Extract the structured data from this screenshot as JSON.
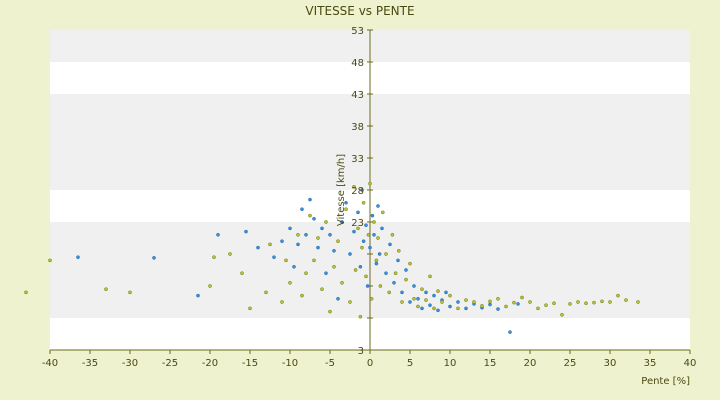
{
  "chart_data": {
    "type": "scatter",
    "title": "VITESSE vs PENTE",
    "xlabel": "Pente [%]",
    "ylabel": "Vitesse [km/h]",
    "xlim": [
      -40,
      40
    ],
    "ylim": [
      3,
      53
    ],
    "x_ticks": [
      -40,
      -35,
      -30,
      -25,
      -20,
      -15,
      -10,
      -5,
      0,
      5,
      10,
      15,
      20,
      25,
      30,
      35,
      40
    ],
    "y_ticks": [
      3,
      8,
      13,
      18,
      23,
      28,
      33,
      38,
      43,
      48,
      53
    ],
    "y_tick_labels": [
      "3",
      "",
      "",
      "",
      "23",
      "28",
      "33",
      "38",
      "43",
      "48",
      "53"
    ],
    "grid": "horizontal alternating bands",
    "legend": "none",
    "colors": {
      "background": "#eef2cf",
      "plot_area": "#ffffff",
      "band": "#f0f0f0",
      "axis": "#6b6b20",
      "series_a": "#3a8fd9",
      "series_b": "#b7c22e"
    },
    "series": [
      {
        "color": "#3a8fd9",
        "points": [
          [
            -36.5,
            17.5
          ],
          [
            -27,
            17.4
          ],
          [
            -21.5,
            11.5
          ],
          [
            -19,
            21
          ],
          [
            -15.5,
            21.5
          ],
          [
            -14,
            19
          ],
          [
            -12,
            17.5
          ],
          [
            -11,
            20
          ],
          [
            -10,
            22
          ],
          [
            -9.5,
            16
          ],
          [
            -9,
            19.5
          ],
          [
            -8.5,
            25
          ],
          [
            -8,
            21
          ],
          [
            -7.5,
            26.5
          ],
          [
            -7,
            23.5
          ],
          [
            -6.5,
            19
          ],
          [
            -6,
            22
          ],
          [
            -5.5,
            15
          ],
          [
            -5,
            21
          ],
          [
            -4.5,
            18.5
          ],
          [
            -4,
            11
          ],
          [
            -3.5,
            23
          ],
          [
            -3,
            26
          ],
          [
            -2.5,
            18
          ],
          [
            -2,
            21.5
          ],
          [
            -1.5,
            24.5
          ],
          [
            -1.2,
            16
          ],
          [
            -1,
            28
          ],
          [
            -0.8,
            20
          ],
          [
            -0.5,
            22.5
          ],
          [
            -0.3,
            13
          ],
          [
            0,
            19
          ],
          [
            0.3,
            24
          ],
          [
            0.5,
            21
          ],
          [
            0.8,
            16.5
          ],
          [
            1,
            25.5
          ],
          [
            1.2,
            18
          ],
          [
            1.5,
            22
          ],
          [
            2,
            15
          ],
          [
            2.5,
            19.5
          ],
          [
            3,
            13.5
          ],
          [
            3.5,
            17
          ],
          [
            4,
            12
          ],
          [
            4.5,
            15.5
          ],
          [
            5,
            10.5
          ],
          [
            5.5,
            13
          ],
          [
            6,
            11
          ],
          [
            6.5,
            9.5
          ],
          [
            7,
            12
          ],
          [
            7.5,
            10
          ],
          [
            8,
            11.5
          ],
          [
            8.5,
            9.2
          ],
          [
            9,
            10.8
          ],
          [
            9.5,
            12
          ],
          [
            10,
            9.8
          ],
          [
            11,
            10.5
          ],
          [
            12,
            9.5
          ],
          [
            13,
            10.2
          ],
          [
            14,
            9.6
          ],
          [
            15,
            10.1
          ],
          [
            16,
            9.4
          ],
          [
            17.5,
            5.8
          ],
          [
            18.5,
            10.2
          ]
        ]
      },
      {
        "color": "#b7c22e",
        "points": [
          [
            -43,
            12
          ],
          [
            -40,
            17
          ],
          [
            -33,
            12.5
          ],
          [
            -30,
            12
          ],
          [
            -20,
            13
          ],
          [
            -19.5,
            17.5
          ],
          [
            -17.5,
            18
          ],
          [
            -16,
            15
          ],
          [
            -15,
            9.5
          ],
          [
            -13,
            12
          ],
          [
            -12.5,
            19.5
          ],
          [
            -11,
            10.5
          ],
          [
            -10.5,
            17
          ],
          [
            -10,
            13.5
          ],
          [
            -9,
            21
          ],
          [
            -8.5,
            11.5
          ],
          [
            -8,
            15
          ],
          [
            -7.5,
            24
          ],
          [
            -7,
            17
          ],
          [
            -6.5,
            20.5
          ],
          [
            -6,
            12.5
          ],
          [
            -5.5,
            23
          ],
          [
            -5,
            9
          ],
          [
            -4.5,
            16
          ],
          [
            -4,
            20
          ],
          [
            -3.5,
            13.5
          ],
          [
            -3,
            25
          ],
          [
            -2.5,
            10.5
          ],
          [
            -2,
            28.5
          ],
          [
            -1.8,
            15.5
          ],
          [
            -1.5,
            22
          ],
          [
            -1.2,
            8.2
          ],
          [
            -1,
            19
          ],
          [
            -0.8,
            26
          ],
          [
            -0.5,
            14.5
          ],
          [
            -0.2,
            21
          ],
          [
            0,
            29
          ],
          [
            0.2,
            11
          ],
          [
            0.5,
            23
          ],
          [
            0.8,
            17
          ],
          [
            1,
            20.5
          ],
          [
            1.3,
            13
          ],
          [
            1.6,
            24.5
          ],
          [
            2,
            18
          ],
          [
            2.4,
            12
          ],
          [
            2.8,
            21
          ],
          [
            3.2,
            15
          ],
          [
            3.6,
            18.5
          ],
          [
            4,
            10.5
          ],
          [
            4.5,
            14
          ],
          [
            5,
            16.5
          ],
          [
            5.5,
            11
          ],
          [
            6,
            9.8
          ],
          [
            6.5,
            12.5
          ],
          [
            7,
            10.8
          ],
          [
            7.5,
            14.5
          ],
          [
            8,
            9.5
          ],
          [
            8.5,
            12.2
          ],
          [
            9,
            10.5
          ],
          [
            10,
            11.5
          ],
          [
            11,
            9.5
          ],
          [
            12,
            10.8
          ],
          [
            13,
            10.5
          ],
          [
            14,
            9.9
          ],
          [
            15,
            10.6
          ],
          [
            16,
            11
          ],
          [
            17,
            9.8
          ],
          [
            18,
            10.4
          ],
          [
            19,
            11.2
          ],
          [
            20,
            10.5
          ],
          [
            21,
            9.5
          ],
          [
            22,
            10
          ],
          [
            23,
            10.3
          ],
          [
            24,
            8.5
          ],
          [
            25,
            10.2
          ],
          [
            26,
            10.5
          ],
          [
            27,
            10.3
          ],
          [
            28,
            10.4
          ],
          [
            29,
            10.6
          ],
          [
            30,
            10.5
          ],
          [
            31,
            11.5
          ],
          [
            32,
            10.8
          ],
          [
            33.5,
            10.5
          ]
        ]
      }
    ]
  }
}
